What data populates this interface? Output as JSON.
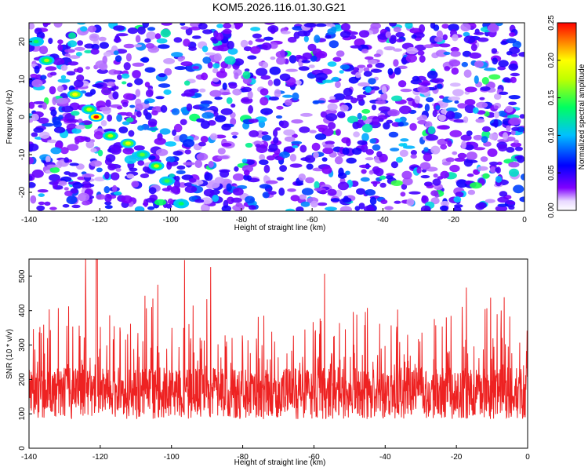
{
  "figure": {
    "title": "KOM5.2026.116.01.30.G21"
  },
  "chart_data": [
    {
      "type": "heatmap",
      "xlabel": "Height of straight line (km)",
      "ylabel": "Frequency (Hz)",
      "xlim": [
        -140,
        0
      ],
      "ylim": [
        -25,
        25
      ],
      "xticks": [
        -140,
        -120,
        -100,
        -80,
        -60,
        -40,
        -20,
        0
      ],
      "yticks": [
        -20,
        -10,
        0,
        10,
        20
      ],
      "colorbar": {
        "label": "Normalized spectral amplitude",
        "range": [
          0.0,
          0.25
        ],
        "ticks": [
          "0.00",
          "0.05",
          "0.10",
          "0.15",
          "0.20",
          "0.25"
        ],
        "colors": [
          "#ffffff",
          "#7f00ff",
          "#0000ff",
          "#00ffff",
          "#00ff00",
          "#ffff00",
          "#ff7f00",
          "#ff0000"
        ]
      },
      "background_noise_level": 0.04,
      "ridge": {
        "description_values": [
          {
            "x": -138,
            "y": 20
          },
          {
            "x": -135,
            "y": 15
          },
          {
            "x": -127,
            "y": 6
          },
          {
            "x": -123,
            "y": 2
          },
          {
            "x": -121,
            "y": 0
          },
          {
            "x": -117,
            "y": -5
          },
          {
            "x": -112,
            "y": -7
          },
          {
            "x": -108,
            "y": -10
          },
          {
            "x": -104,
            "y": -13
          },
          {
            "x": -101,
            "y": -17
          },
          {
            "x": -97,
            "y": -23
          }
        ],
        "peak": {
          "x": -121,
          "y": 0,
          "value": 0.25
        }
      }
    },
    {
      "type": "line",
      "xlabel": "Height of straight line (km)",
      "ylabel": "SNR (10 * v/v)",
      "xlim": [
        -140,
        0
      ],
      "ylim": [
        0,
        550
      ],
      "xticks": [
        -140,
        -120,
        -100,
        -80,
        -60,
        -40,
        -20,
        0
      ],
      "yticks": [
        0,
        100,
        200,
        300,
        400,
        500
      ],
      "color": "#ee2222",
      "mean": 160,
      "max": 550,
      "peak_x": -121
    }
  ]
}
